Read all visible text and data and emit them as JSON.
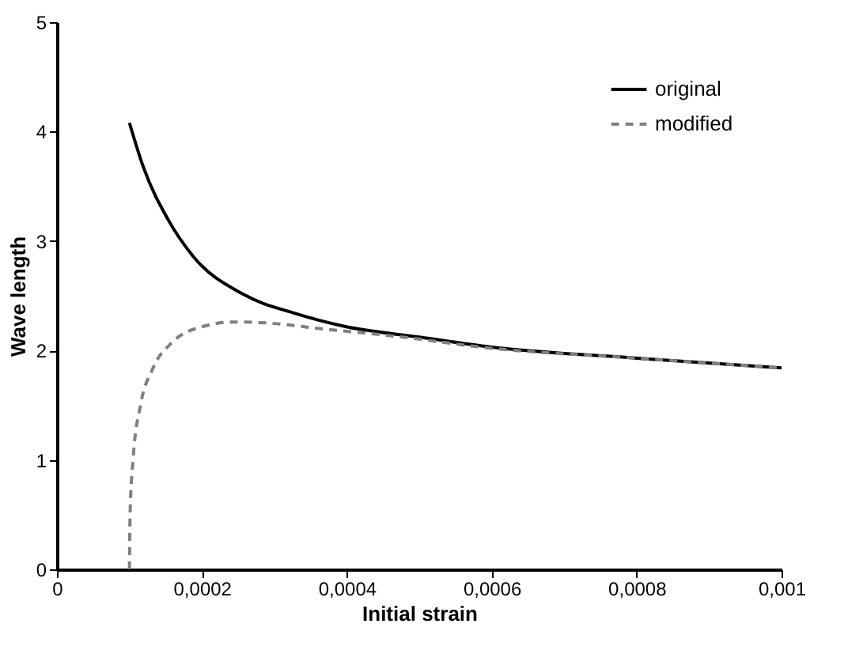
{
  "chart_data": {
    "type": "line",
    "xlabel": "Initial strain",
    "ylabel": "Wave length",
    "xlim": [
      0,
      0.001
    ],
    "ylim": [
      0,
      5
    ],
    "xticks": [
      0,
      {
        "value": 0.0002,
        "label": "0,0002"
      },
      {
        "value": 0.0004,
        "label": "0,0004"
      },
      {
        "value": 0.0006,
        "label": "0,0006"
      },
      {
        "value": 0.0008,
        "label": "0,0008"
      },
      {
        "value": 0.001,
        "label": "0,001"
      }
    ],
    "yticks": [
      0,
      1,
      2,
      3,
      4,
      5
    ],
    "grid": false,
    "legend": "top right",
    "marker": "none",
    "series": [
      {
        "name": "original",
        "color": "#000000",
        "line_style": "solid",
        "x": [
          0.0001,
          0.000119,
          0.000153,
          0.000188,
          0.000258,
          0.000328,
          0.000397,
          0.000502,
          0.0006,
          0.0008,
          0.001
        ],
        "values": [
          4.08,
          3.68,
          3.2,
          2.86,
          2.51,
          2.34,
          2.22,
          2.12,
          2.03,
          1.93,
          1.84
        ]
      },
      {
        "name": "modified",
        "color": "#808080",
        "line_style": "dashed",
        "x": [
          0.0001,
          0.000101,
          0.000105,
          0.000115,
          0.000132,
          0.00016,
          0.000202,
          0.000244,
          0.000293,
          0.000362,
          0.000467,
          0.0006,
          0.0008,
          0.001
        ],
        "values": [
          0,
          0.52,
          1.0,
          1.49,
          1.83,
          2.08,
          2.22,
          2.26,
          2.25,
          2.2,
          2.13,
          2.02,
          1.93,
          1.84
        ]
      }
    ]
  }
}
